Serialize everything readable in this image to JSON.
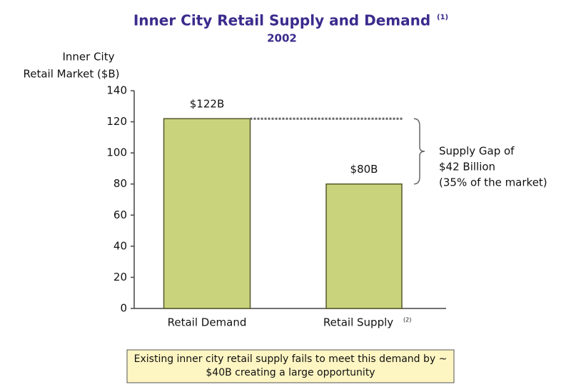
{
  "chart_data": {
    "type": "bar",
    "title": "Inner City Retail Supply and Demand",
    "title_note": "(1)",
    "subtitle": "2002",
    "y_label_lines": [
      "Inner City",
      "Retail Market ($B)"
    ],
    "categories": [
      "Retail Demand",
      "Retail Supply"
    ],
    "supply_note": "(2)",
    "values": [
      122,
      80
    ],
    "value_labels": [
      "$122B",
      "$80B"
    ],
    "color": "#c9d37c",
    "ylim": [
      0,
      140
    ],
    "yticks": [
      0,
      20,
      40,
      60,
      80,
      100,
      120,
      140
    ],
    "gap_annotation": [
      "Supply Gap of",
      "$42 Billion",
      "(35% of the market)"
    ],
    "callout": [
      "Existing inner city retail supply fails to meet this demand by ~",
      "$40B creating a large opportunity"
    ]
  }
}
